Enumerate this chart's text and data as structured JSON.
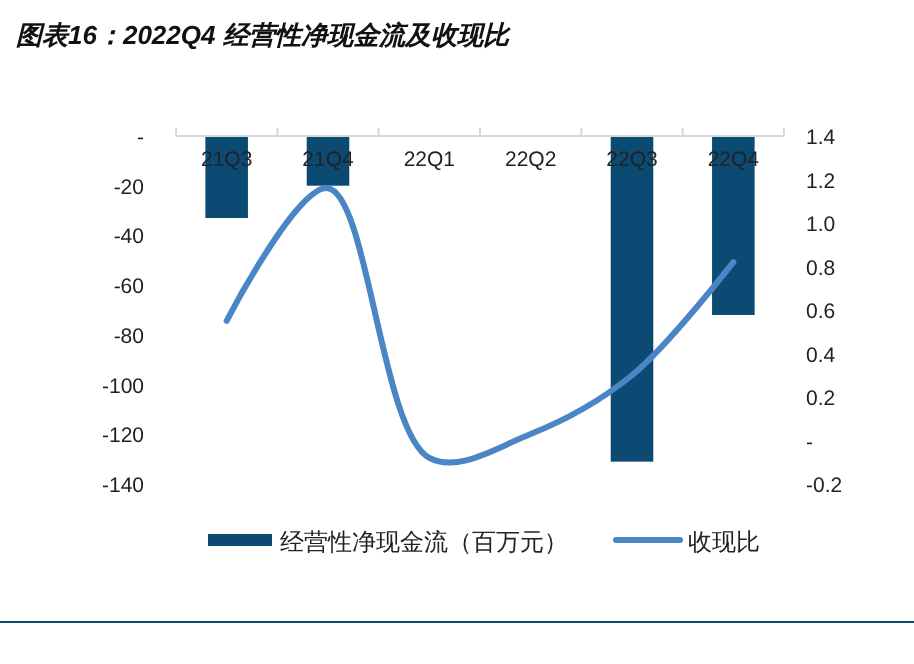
{
  "chart_data": {
    "type": "bar",
    "title": "图表16：2022Q4 经营性净现金流及收现比",
    "categories": [
      "21Q3",
      "21Q4",
      "22Q1",
      "22Q2",
      "22Q3",
      "22Q4"
    ],
    "series": [
      {
        "name": "经营性净现金流（百万元）",
        "color": "#0b4a73",
        "values": [
          -33,
          -20,
          0,
          0,
          -131,
          -72
        ]
      },
      {
        "name": "收现比",
        "type": "line",
        "axis": "y2",
        "color": "#4a86c5",
        "values": [
          0.55,
          1.16,
          -0.08,
          0.03,
          0.3,
          0.82
        ]
      }
    ],
    "ylim": [
      -140,
      0
    ],
    "yticks": [
      {
        "value": 0,
        "label": "-"
      },
      -20,
      -40,
      -60,
      -80,
      -100,
      -120,
      -140
    ],
    "y2lim": [
      -0.2,
      1.4
    ],
    "y2ticks": [
      1.4,
      1.2,
      {
        "value": 1,
        "label": "1.0"
      },
      0.8,
      0.6,
      0.4,
      0.2,
      {
        "value": 0,
        "label": "-"
      },
      -0.2
    ],
    "legend": "bottom",
    "grid": false,
    "line_style": "solid",
    "marker": "none"
  }
}
